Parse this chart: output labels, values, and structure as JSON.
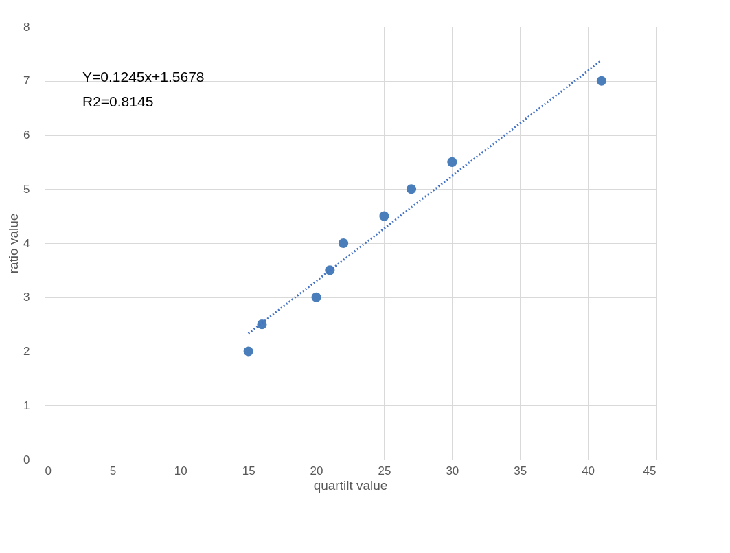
{
  "chart_data": {
    "type": "scatter",
    "xlabel": "quartilt value",
    "ylabel": "ratio value",
    "xlim": [
      0,
      45
    ],
    "xticks": [
      0,
      5,
      10,
      15,
      20,
      25,
      30,
      35,
      40,
      45
    ],
    "ylim": [
      0,
      8
    ],
    "yticks": [
      0,
      1,
      2,
      3,
      4,
      5,
      6,
      7,
      8
    ],
    "grid": true,
    "marker": "circle",
    "series": [
      {
        "color": "#4a7ebb",
        "x": [
          15,
          16,
          20,
          21,
          22,
          25,
          27,
          30,
          41
        ],
        "values": [
          2,
          2.5,
          3,
          3.5,
          4,
          4.5,
          5,
          5.5,
          7
        ]
      },
      {
        "type": "line",
        "color": "#4472c4",
        "line_style": "dotted",
        "marker": "none",
        "x": [
          15,
          41
        ],
        "values": [
          2.33,
          7.38
        ]
      }
    ],
    "annotations": [
      "Y=0.1245x+1.5678",
      "R2=0.8145"
    ]
  }
}
